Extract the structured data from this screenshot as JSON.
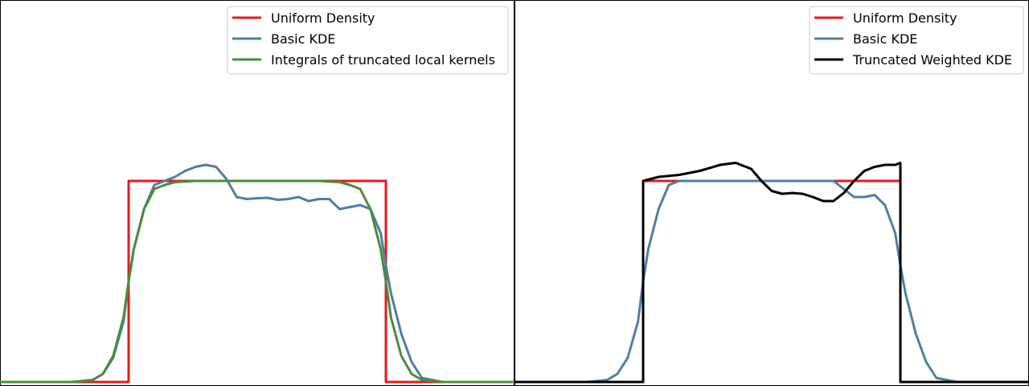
{
  "chart_data": [
    {
      "type": "line",
      "title": "",
      "xlabel": "",
      "ylabel": "",
      "xlim": [
        -2.5,
        2.5
      ],
      "ylim": [
        -0.01,
        0.95
      ],
      "axes_visible": false,
      "legend_location": "upper right",
      "series": [
        {
          "name": "Uniform Density",
          "color": "#e41a1c",
          "x": [
            -2.5,
            -1.25,
            -1.25,
            1.25,
            1.25,
            2.5
          ],
          "y": [
            0,
            0,
            0.5,
            0.5,
            0,
            0
          ]
        },
        {
          "name": "Basic KDE",
          "color": "#4f7fa3",
          "x": [
            -2.5,
            -1.8,
            -1.6,
            -1.5,
            -1.4,
            -1.3,
            -1.25,
            -1.2,
            -1.1,
            -1.0,
            -0.9,
            -0.8,
            -0.7,
            -0.6,
            -0.5,
            -0.4,
            -0.3,
            -0.2,
            -0.1,
            0.0,
            0.1,
            0.2,
            0.3,
            0.4,
            0.5,
            0.6,
            0.7,
            0.8,
            0.9,
            1.0,
            1.1,
            1.2,
            1.25,
            1.3,
            1.4,
            1.5,
            1.6,
            1.8,
            2.5
          ],
          "y": [
            0,
            0,
            0.005,
            0.02,
            0.06,
            0.15,
            0.25,
            0.33,
            0.43,
            0.49,
            0.5,
            0.51,
            0.525,
            0.535,
            0.54,
            0.535,
            0.505,
            0.46,
            0.455,
            0.457,
            0.458,
            0.453,
            0.455,
            0.46,
            0.45,
            0.455,
            0.455,
            0.43,
            0.435,
            0.44,
            0.43,
            0.37,
            0.29,
            0.22,
            0.12,
            0.05,
            0.01,
            0,
            0
          ]
        },
        {
          "name": "Integrals of truncated local kernels",
          "color": "#4c8c3c",
          "x": [
            -2.5,
            -1.8,
            -1.6,
            -1.5,
            -1.4,
            -1.3,
            -1.25,
            -1.2,
            -1.1,
            -1.0,
            -0.9,
            -0.8,
            -0.6,
            0.0,
            0.6,
            0.8,
            0.9,
            1.0,
            1.1,
            1.2,
            1.25,
            1.3,
            1.4,
            1.5,
            1.6,
            1.8,
            2.5
          ],
          "y": [
            0,
            0,
            0.005,
            0.02,
            0.065,
            0.16,
            0.25,
            0.33,
            0.43,
            0.48,
            0.49,
            0.497,
            0.5,
            0.5,
            0.5,
            0.497,
            0.49,
            0.48,
            0.43,
            0.33,
            0.25,
            0.16,
            0.065,
            0.02,
            0.005,
            0,
            0
          ]
        }
      ]
    },
    {
      "type": "line",
      "title": "",
      "xlabel": "",
      "ylabel": "",
      "xlim": [
        -2.5,
        2.5
      ],
      "ylim": [
        -0.01,
        0.95
      ],
      "axes_visible": false,
      "legend_location": "upper right",
      "series": [
        {
          "name": "Uniform Density",
          "color": "#e41a1c",
          "x": [
            -2.5,
            -1.25,
            -1.25,
            1.25,
            1.25,
            2.5
          ],
          "y": [
            0,
            0,
            0.5,
            0.5,
            0,
            0
          ]
        },
        {
          "name": "Basic KDE",
          "color": "#4f7fa3",
          "x": [
            -2.5,
            -1.8,
            -1.6,
            -1.5,
            -1.4,
            -1.3,
            -1.25,
            -1.2,
            -1.1,
            -1.0,
            -0.9,
            -0.8,
            -0.7,
            -0.6,
            -0.5,
            -0.4,
            -0.3,
            -0.2,
            -0.1,
            0.0,
            0.1,
            0.2,
            0.3,
            0.4,
            0.5,
            0.6,
            0.7,
            0.8,
            0.9,
            1.0,
            1.1,
            1.2,
            1.25,
            1.3,
            1.4,
            1.5,
            1.6,
            1.8,
            2.5
          ],
          "y": [
            0,
            0,
            0.005,
            0.02,
            0.06,
            0.15,
            0.25,
            0.33,
            0.43,
            0.49,
            0.5,
            0.5,
            0.5,
            0.5,
            0.5,
            0.5,
            0.5,
            0.5,
            0.5,
            0.5,
            0.5,
            0.5,
            0.5,
            0.5,
            0.5,
            0.5,
            0.48,
            0.46,
            0.46,
            0.465,
            0.44,
            0.37,
            0.29,
            0.22,
            0.12,
            0.05,
            0.01,
            0,
            0
          ]
        },
        {
          "name": "Truncated Weighted KDE",
          "color": "#000000",
          "x": [
            -2.5,
            -1.25,
            -1.25,
            -1.1,
            -0.9,
            -0.7,
            -0.5,
            -0.35,
            -0.2,
            -0.1,
            0.0,
            0.1,
            0.2,
            0.3,
            0.4,
            0.5,
            0.6,
            0.7,
            0.8,
            0.9,
            1.0,
            1.1,
            1.2,
            1.25,
            1.25,
            2.5
          ],
          "y": [
            0,
            0,
            0.5,
            0.51,
            0.515,
            0.525,
            0.54,
            0.545,
            0.53,
            0.5,
            0.475,
            0.468,
            0.47,
            0.468,
            0.46,
            0.45,
            0.45,
            0.47,
            0.5,
            0.525,
            0.535,
            0.54,
            0.54,
            0.545,
            0,
            0
          ]
        }
      ]
    }
  ]
}
